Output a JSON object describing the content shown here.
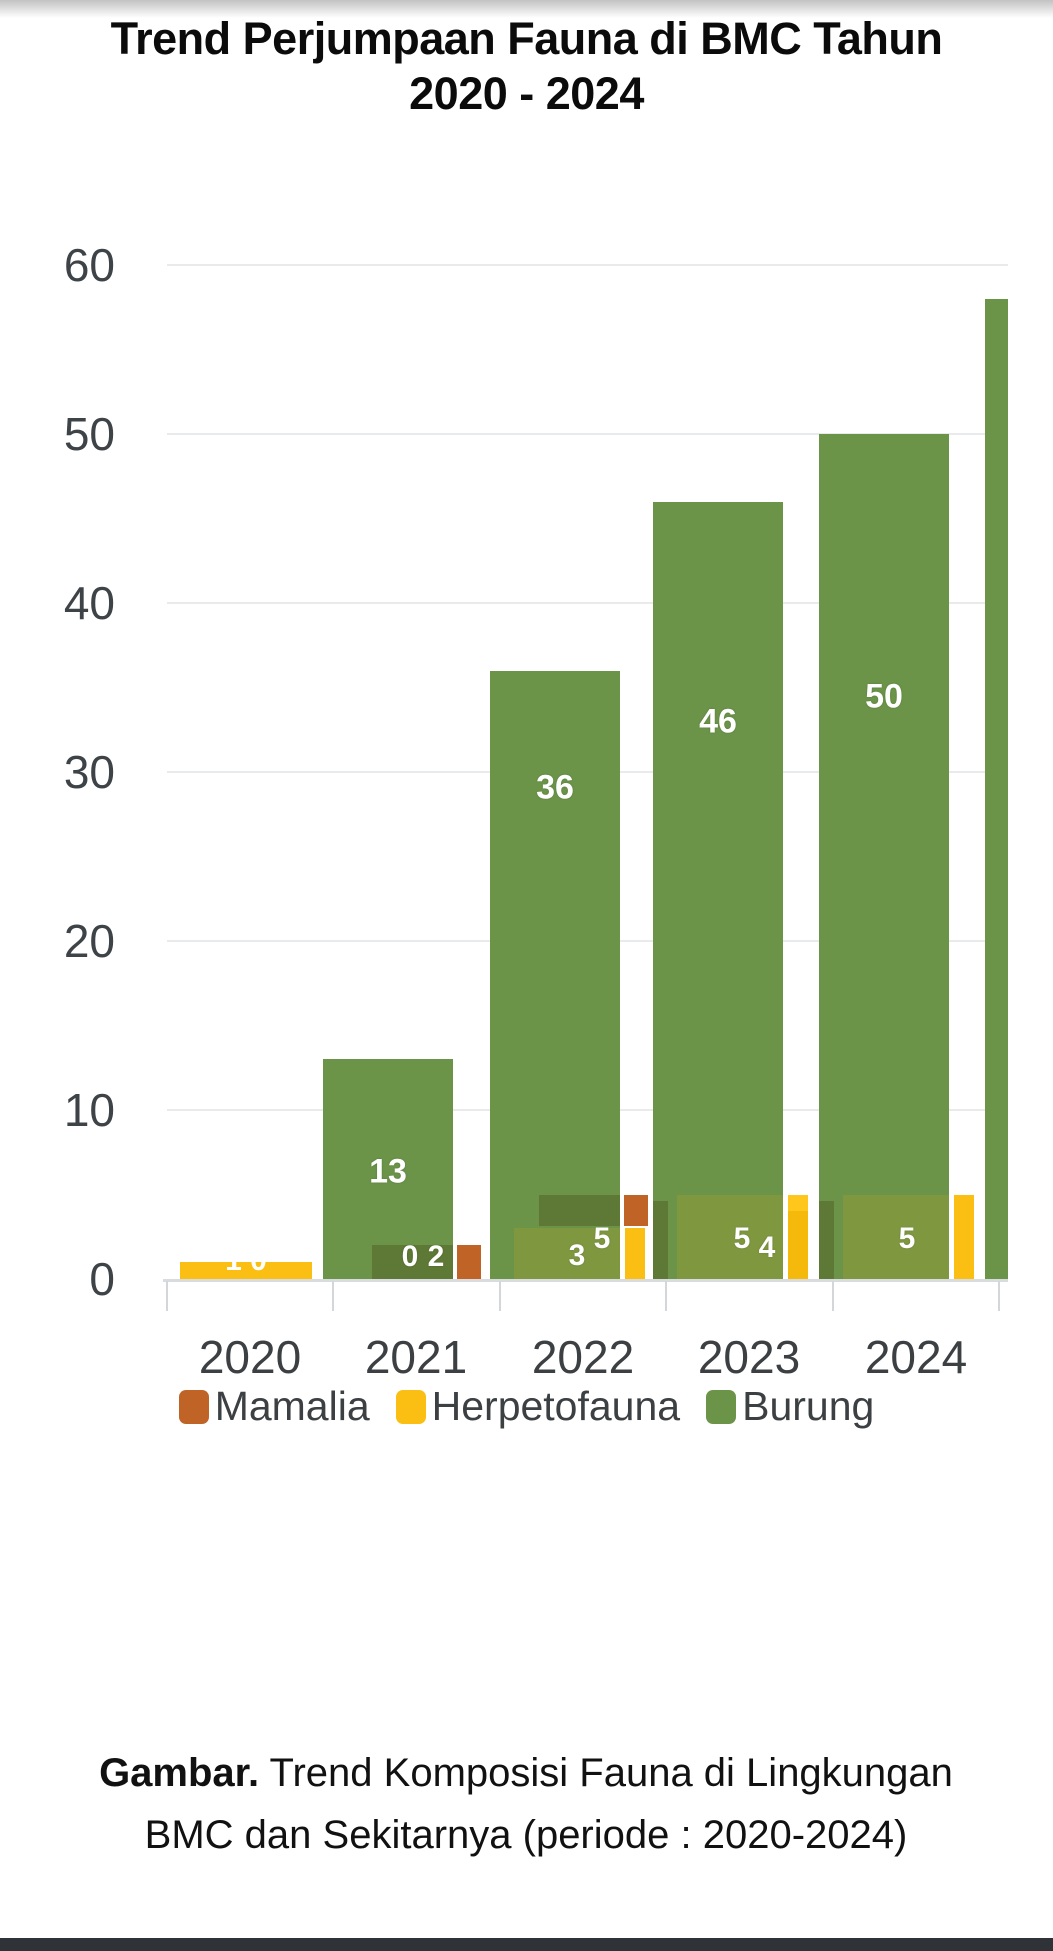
{
  "title": {
    "line1": "Trend Perjumpaan Fauna di BMC Tahun",
    "line2": "2020 - 2024"
  },
  "chart_data": {
    "type": "bar",
    "title": "Trend Perjumpaan Fauna di BMC Tahun 2020 - 2024",
    "categories": [
      "2020",
      "2021",
      "2022",
      "2023",
      "2024"
    ],
    "series": [
      {
        "name": "Mamalia",
        "color": "#BF6326",
        "values": [
          0,
          2,
          5,
          4,
          4
        ]
      },
      {
        "name": "Herpetofauna",
        "color": "#FBBE12",
        "values": [
          1,
          0,
          3,
          5,
          5
        ]
      },
      {
        "name": "Burung",
        "color": "#6B9449",
        "values": [
          0,
          13,
          36,
          46,
          50
        ]
      }
    ],
    "clipped_partial_bar": {
      "series": "Burung",
      "estimated_value": 58,
      "note": "bar cut off at right edge of chart"
    },
    "ylim": [
      0,
      60
    ],
    "yticks": [
      60,
      50,
      40,
      30,
      20,
      10,
      0
    ],
    "grid": true,
    "legend_position": "bottom",
    "bar_value_labels": {
      "2020": [
        "1 0"
      ],
      "2021": [
        "13",
        "0",
        "2"
      ],
      "2022": [
        "36",
        "3",
        "5"
      ],
      "2023": [
        "46",
        "5",
        "4"
      ],
      "2024": [
        "50",
        "5"
      ]
    },
    "render_hints": {
      "mamalia_mode": [
        "none",
        "beside",
        "above-herpetofauna",
        "behind-left-sliver",
        "behind-left-sliver"
      ],
      "herpetofauna_strip": [
        "full-bar",
        "none",
        "solid",
        "two-tone",
        "solid"
      ],
      "overlap_style": "series bars overlap with translucent blending over the green bars"
    },
    "colors": {
      "burung_green": "#6B9449",
      "herpetofauna_yellow": "#FBBE12",
      "mamalia_orange": "#BF6326",
      "blend_olive": "#7F9840",
      "blend_dark_green": "#5E7836",
      "blend_amber": "#F4B90B",
      "yellow_highlight": "#FFC61C"
    }
  },
  "legend": {
    "items": [
      {
        "label": "Mamalia",
        "color": "#BF6326"
      },
      {
        "label": "Herpetofauna",
        "color": "#FBBE12"
      },
      {
        "label": "Burung",
        "color": "#6B9449"
      }
    ]
  },
  "caption": {
    "prefix": "Gambar.",
    "text": " Trend Komposisi Fauna di Lingkungan BMC dan Sekitarnya (periode : 2020-2024)"
  }
}
